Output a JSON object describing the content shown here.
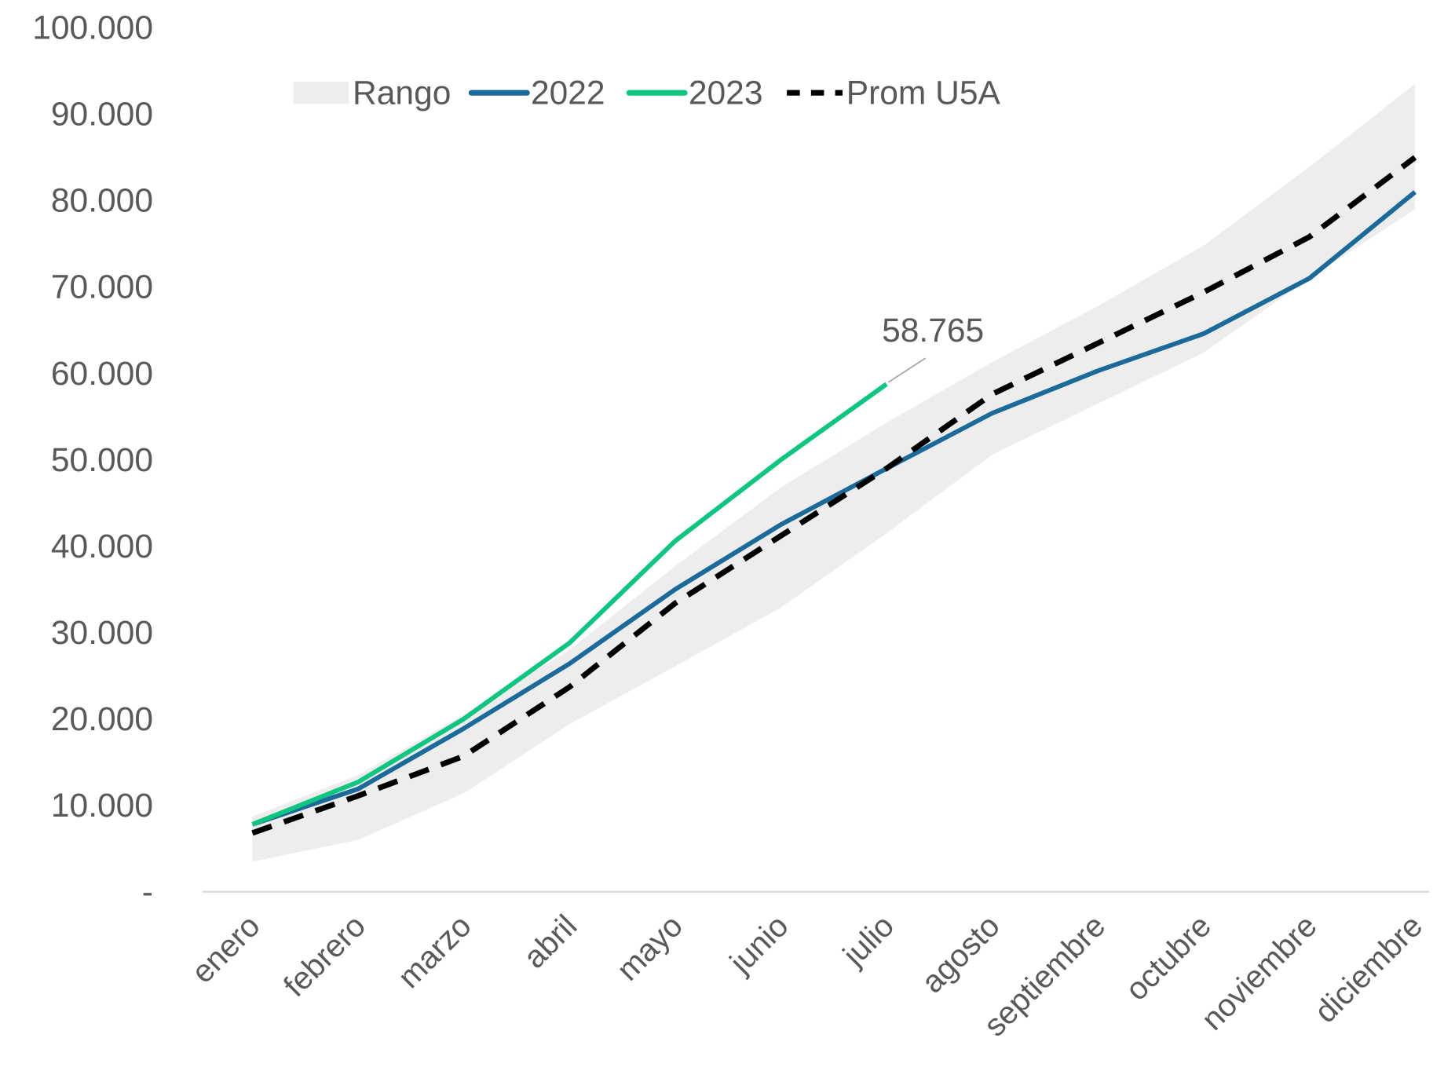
{
  "chart_data": {
    "type": "line",
    "categories": [
      "enero",
      "febrero",
      "marzo",
      "abril",
      "mayo",
      "junio",
      "julio",
      "agosto",
      "septiembre",
      "octubre",
      "noviembre",
      "diciembre"
    ],
    "series": [
      {
        "name": "Rango",
        "color": "#ededed",
        "kind": "band",
        "lower": [
          3500,
          6000,
          11400,
          19400,
          26100,
          32900,
          41500,
          50600,
          56500,
          62400,
          71000,
          79000
        ],
        "upper": [
          8700,
          13500,
          20500,
          28000,
          37700,
          46800,
          54300,
          61300,
          67800,
          74800,
          83900,
          93500
        ]
      },
      {
        "name": "2022",
        "color": "#1b6a9a",
        "values": [
          7800,
          11900,
          18900,
          26400,
          35000,
          42500,
          49000,
          55400,
          60300,
          64600,
          71000,
          81000
        ]
      },
      {
        "name": "2023",
        "color": "#0fc57f",
        "values": [
          7800,
          12700,
          20000,
          28800,
          40600,
          50000,
          58765,
          null,
          null,
          null,
          null,
          null
        ],
        "value_labels": [
          null,
          null,
          null,
          null,
          null,
          null,
          "58.765",
          null,
          null,
          null,
          null,
          null
        ]
      },
      {
        "name": "Prom U5A",
        "color": "#000000",
        "dash": true,
        "values": [
          6800,
          11100,
          15700,
          23700,
          33400,
          41200,
          49000,
          57600,
          63500,
          69400,
          75800,
          85000
        ]
      }
    ],
    "ylim": [
      0,
      100000
    ],
    "yticks": [
      {
        "value": 0,
        "label": "-"
      },
      {
        "value": 10000,
        "label": "10.000"
      },
      {
        "value": 20000,
        "label": "20.000"
      },
      {
        "value": 30000,
        "label": "30.000"
      },
      {
        "value": 40000,
        "label": "40.000"
      },
      {
        "value": 50000,
        "label": "50.000"
      },
      {
        "value": 60000,
        "label": "60.000"
      },
      {
        "value": 70000,
        "label": "70.000"
      },
      {
        "value": 80000,
        "label": "80.000"
      },
      {
        "value": 90000,
        "label": "90.000"
      },
      {
        "value": 100000,
        "label": "100.000"
      }
    ],
    "grid": false,
    "legend": "top"
  }
}
